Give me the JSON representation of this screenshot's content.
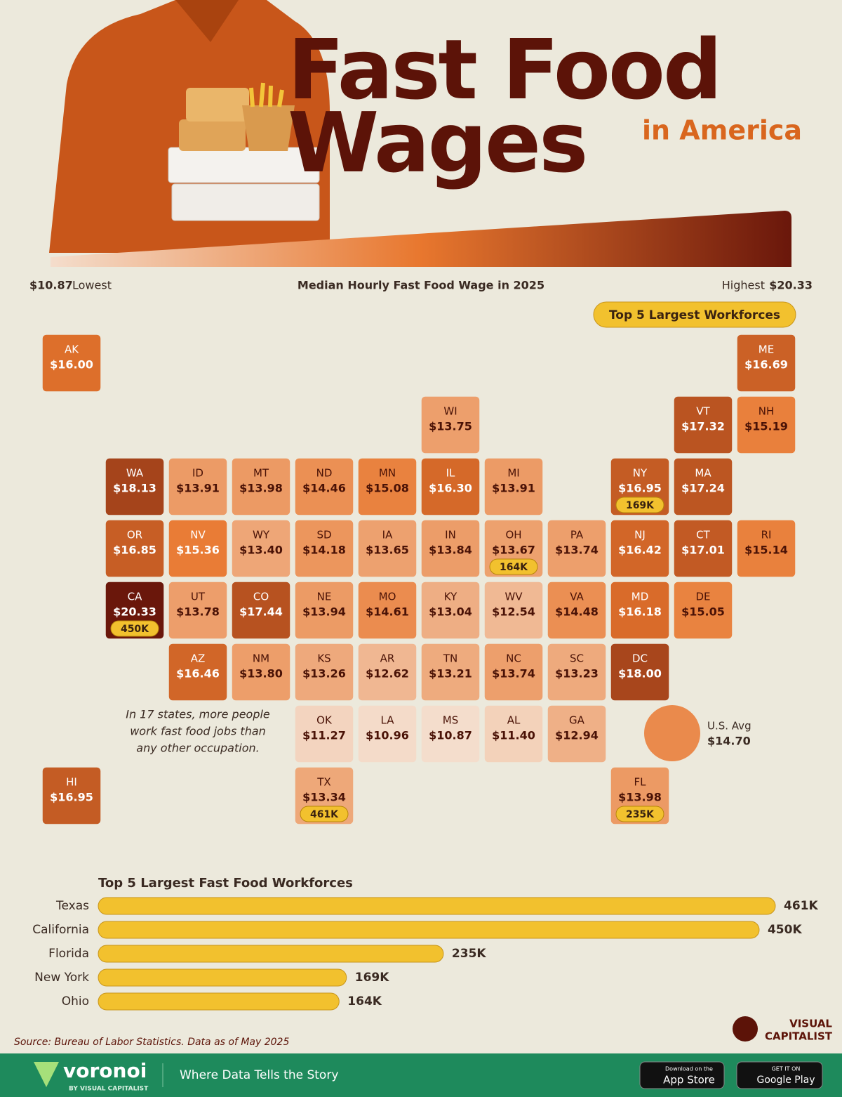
{
  "header": {
    "title_line_1": "Fast Food",
    "title_line_2": "Wages",
    "subtitle": "in America"
  },
  "top5_badge": "Top 5 Largest Workforces",
  "chart_data": [
    {
      "type": "map",
      "title": "Median Hourly Fast Food Wage in 2025",
      "legend": {
        "low": {
          "value": 10.87,
          "label": "$10.87"
        },
        "low_text": "Lowest",
        "high": {
          "value": 20.33,
          "label": "$20.33"
        },
        "high_text": "Highest"
      },
      "colors": [
        "#f4ddcc",
        "#e8772e",
        "#6a170b"
      ],
      "categories": [
        "AK",
        "ME",
        "WI",
        "VT",
        "NH",
        "WA",
        "ID",
        "MT",
        "ND",
        "MN",
        "IL",
        "MI",
        "NY",
        "MA",
        "OR",
        "NV",
        "WY",
        "SD",
        "IA",
        "IN",
        "OH",
        "PA",
        "NJ",
        "CT",
        "RI",
        "CA",
        "UT",
        "CO",
        "NE",
        "MO",
        "KY",
        "WV",
        "VA",
        "MD",
        "DE",
        "AZ",
        "NM",
        "KS",
        "AR",
        "TN",
        "NC",
        "SC",
        "DC",
        "OK",
        "LA",
        "MS",
        "AL",
        "GA",
        "HI",
        "TX",
        "FL"
      ],
      "values": [
        16.0,
        16.69,
        13.75,
        17.32,
        15.19,
        18.13,
        13.91,
        13.98,
        14.46,
        15.08,
        16.3,
        13.91,
        16.95,
        17.24,
        16.85,
        15.36,
        13.4,
        14.18,
        13.65,
        13.84,
        13.67,
        13.74,
        16.42,
        17.01,
        15.14,
        20.33,
        13.78,
        17.44,
        13.94,
        14.61,
        13.04,
        12.54,
        14.48,
        16.18,
        15.05,
        16.46,
        13.8,
        13.26,
        12.62,
        13.21,
        13.74,
        13.23,
        18.0,
        11.27,
        10.96,
        10.87,
        11.4,
        12.94,
        16.95,
        13.34,
        13.98
      ],
      "value_labels": [
        "$16.00",
        "$16.69",
        "$13.75",
        "$17.32",
        "$15.19",
        "$18.13",
        "$13.91",
        "$13.98",
        "$14.46",
        "$15.08",
        "$16.30",
        "$13.91",
        "$16.95",
        "$17.24",
        "$16.85",
        "$15.36",
        "$13.40",
        "$14.18",
        "$13.65",
        "$13.84",
        "$13.67",
        "$13.74",
        "$16.42",
        "$17.01",
        "$15.14",
        "$20.33",
        "$13.78",
        "$17.44",
        "$13.94",
        "$14.61",
        "$13.04",
        "$12.54",
        "$14.48",
        "$16.18",
        "$15.05",
        "$16.46",
        "$13.80",
        "$13.26",
        "$12.62",
        "$13.21",
        "$13.74",
        "$13.23",
        "$18.00",
        "$11.27",
        "$10.96",
        "$10.87",
        "$11.40",
        "$12.94",
        "$16.95",
        "$13.34",
        "$13.98"
      ],
      "average": {
        "label": "U.S. Avg",
        "value": 14.7,
        "value_label": "$14.70"
      },
      "note": [
        "In 17 states, more people",
        "work fast food jobs than",
        "any other occupation."
      ]
    },
    {
      "type": "bar",
      "title": "Top 5 Largest Fast Food Workforces",
      "categories": [
        "Texas",
        "California",
        "Florida",
        "New York",
        "Ohio"
      ],
      "values": [
        461,
        450,
        235,
        169,
        164
      ],
      "value_labels": [
        "461K",
        "450K",
        "235K",
        "169K",
        "164K"
      ],
      "color": "#f2c12e"
    }
  ],
  "source": "Source: Bureau of Labor Statistics. Data as of May 2025",
  "footer": {
    "brand": "voronoi",
    "brand_sub": "BY VISUAL CAPITALIST",
    "tagline": "Where Data Tells the Story",
    "app_store_small": "Download on the",
    "app_store": "App Store",
    "google_small": "GET IT ON",
    "google": "Google Play",
    "logo_line_1": "VISUAL",
    "logo_line_2": "CAPITALIST"
  }
}
